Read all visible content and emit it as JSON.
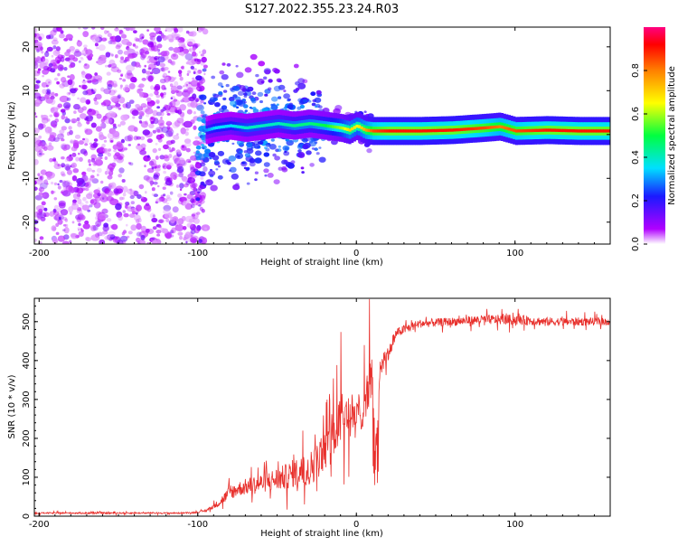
{
  "title": "S127.2022.355.23.24.R03",
  "chart_data": [
    {
      "type": "heatmap",
      "xlabel": "Height of straight line (km)",
      "ylabel": "Frequency (Hz)",
      "xlim": [
        -203,
        160
      ],
      "ylim": [
        -25,
        24.5
      ],
      "xticks": [
        -200,
        -100,
        0,
        100
      ],
      "yticks": [
        -20,
        -10,
        0,
        10,
        20
      ],
      "colorbar": {
        "label": "Normalized spectral amplitude",
        "range": [
          0,
          1
        ],
        "ticks": [
          0.0,
          0.2,
          0.4,
          0.6,
          0.8
        ]
      },
      "noise_region_x": [
        -203,
        -95
      ],
      "ridge": {
        "x": [
          -95,
          -90,
          -80,
          -70,
          -60,
          -50,
          -40,
          -30,
          -20,
          -10,
          -5,
          0,
          5,
          10,
          20,
          40,
          60,
          80,
          90,
          100,
          120,
          140,
          160
        ],
        "y": [
          1,
          1.5,
          2,
          1.5,
          2,
          2.5,
          2,
          2.5,
          2,
          1.5,
          1,
          2,
          1,
          0.8,
          0.8,
          0.8,
          1,
          1.5,
          1.8,
          0.8,
          1,
          0.8,
          0.8
        ],
        "amplitude": [
          0.3,
          0.35,
          0.35,
          0.4,
          0.4,
          0.4,
          0.45,
          0.45,
          0.5,
          0.6,
          0.7,
          0.65,
          0.75,
          0.85,
          0.9,
          0.9,
          0.9,
          0.85,
          0.8,
          0.85,
          0.9,
          0.9,
          0.9
        ]
      }
    },
    {
      "type": "line",
      "xlabel": "Height of straight line (km)",
      "ylabel": "SNR (10 * v/v)",
      "xlim": [
        -203,
        160
      ],
      "ylim": [
        0,
        560
      ],
      "xticks": [
        -200,
        -100,
        0,
        100
      ],
      "yticks": [
        0,
        100,
        200,
        300,
        400,
        500
      ],
      "series": [
        {
          "color": "#e8302c",
          "x": [
            -203,
            -150,
            -110,
            -100,
            -95,
            -90,
            -85,
            -80,
            -75,
            -70,
            -65,
            -60,
            -55,
            -50,
            -45,
            -40,
            -35,
            -30,
            -25,
            -20,
            -15,
            -10,
            -5,
            0,
            5,
            10,
            12,
            15,
            20,
            23,
            25,
            30,
            40,
            60,
            80,
            100,
            120,
            140,
            160
          ],
          "y": [
            8,
            8,
            8,
            10,
            14,
            25,
            40,
            60,
            70,
            75,
            80,
            85,
            90,
            95,
            100,
            110,
            115,
            120,
            140,
            170,
            205,
            245,
            265,
            240,
            300,
            360,
            150,
            380,
            420,
            440,
            470,
            480,
            495,
            500,
            505,
            505,
            500,
            500,
            500
          ],
          "noise": [
            3,
            3,
            3,
            3,
            5,
            10,
            20,
            30,
            30,
            35,
            40,
            40,
            45,
            50,
            55,
            60,
            65,
            70,
            80,
            90,
            100,
            110,
            110,
            100,
            100,
            90,
            60,
            50,
            30,
            25,
            20,
            20,
            18,
            18,
            20,
            22,
            18,
            18,
            15
          ]
        }
      ]
    }
  ]
}
